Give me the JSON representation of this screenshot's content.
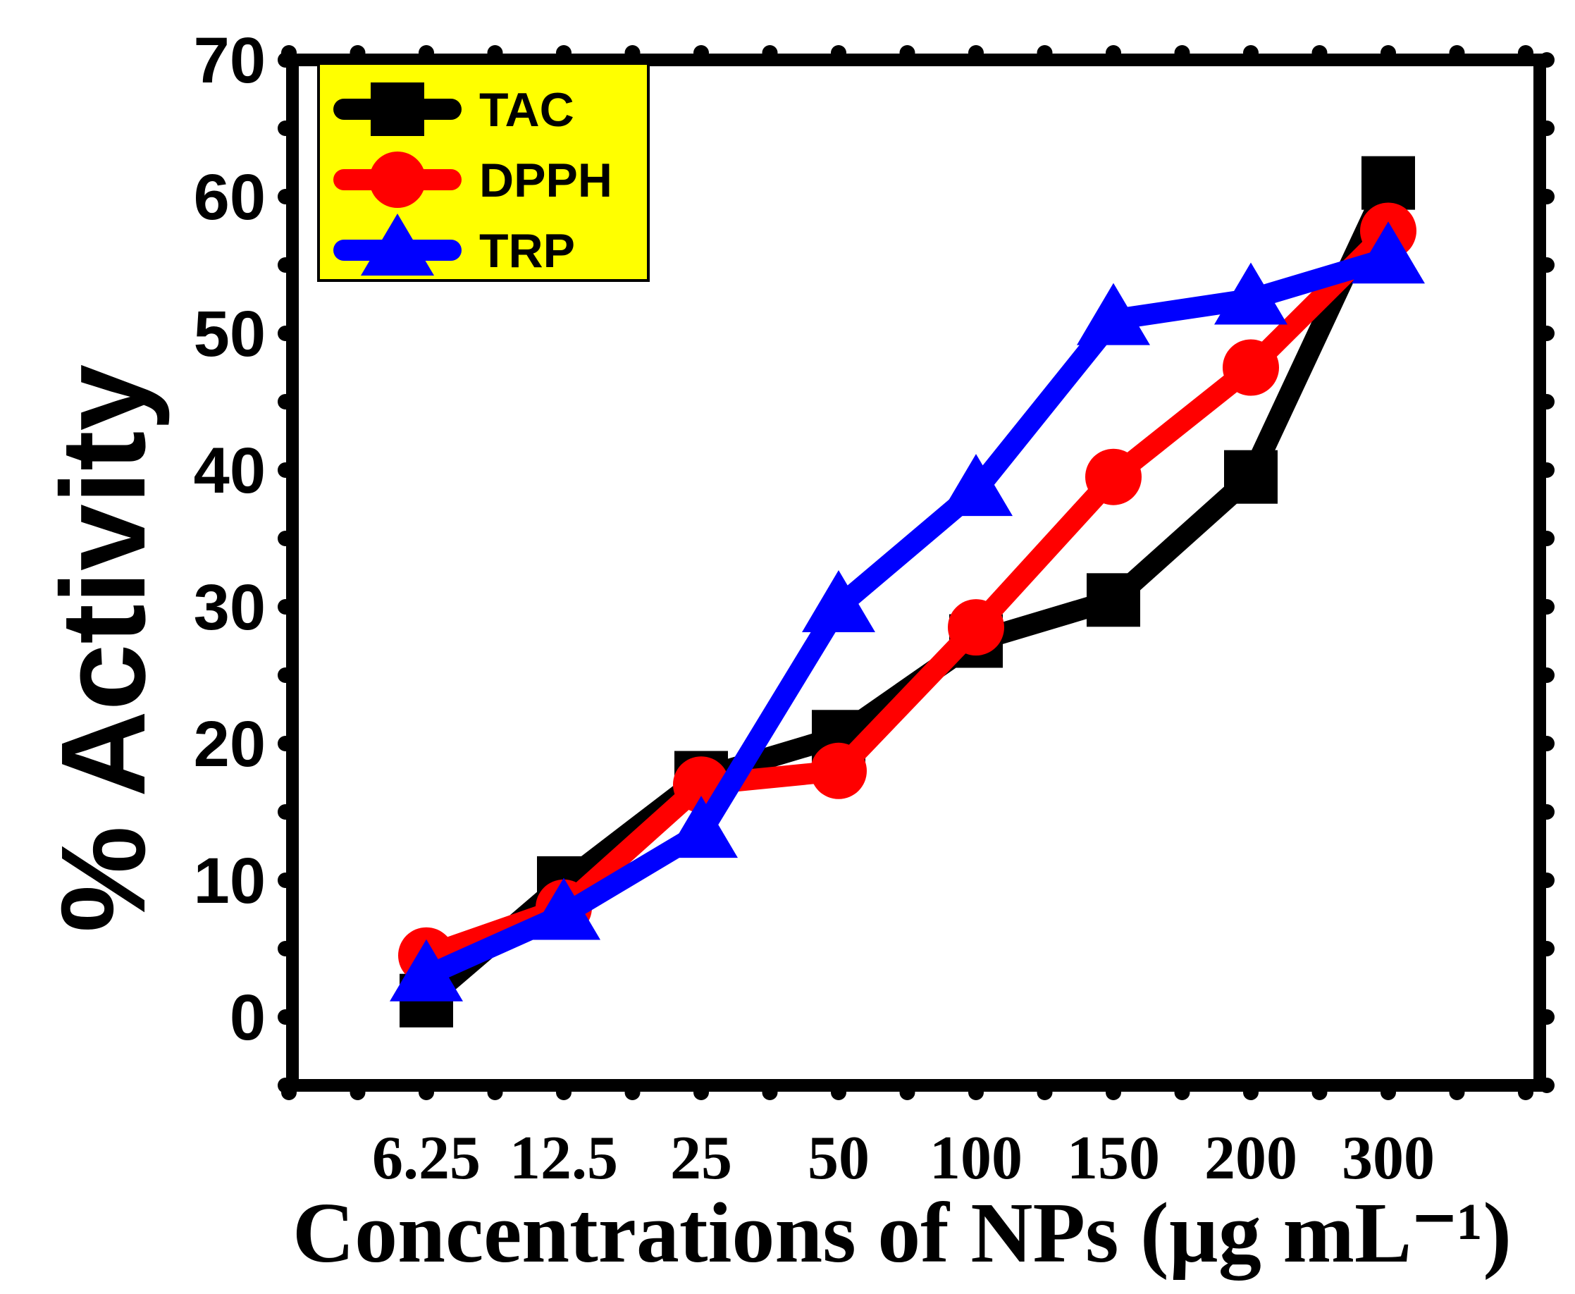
{
  "chart_data": {
    "type": "line",
    "title": "",
    "xlabel": "Concentrations of NPs (µg mL⁻¹)",
    "ylabel": "% Activity",
    "categories": [
      "6.25",
      "12.5",
      "25",
      "50",
      "100",
      "150",
      "200",
      "300"
    ],
    "ylim": [
      -5,
      70
    ],
    "yticks": [
      0,
      10,
      20,
      30,
      40,
      50,
      60,
      70
    ],
    "grid": false,
    "legend_position": "top-left",
    "legend_background": "#ffff00",
    "series": [
      {
        "name": "TAC",
        "color": "#000000",
        "marker": "square",
        "values": [
          1.2,
          9.8,
          17.5,
          20.5,
          27.5,
          30.5,
          39.5,
          61
        ]
      },
      {
        "name": "DPPH",
        "color": "#ff0000",
        "marker": "circle",
        "values": [
          4.5,
          8.0,
          17.0,
          18.0,
          28.5,
          39.5,
          47.5,
          57.5
        ]
      },
      {
        "name": "TRP",
        "color": "#0000ff",
        "marker": "triangle",
        "values": [
          3.0,
          7.5,
          13.5,
          30.0,
          38.5,
          51.0,
          52.5,
          55.5
        ]
      }
    ]
  }
}
